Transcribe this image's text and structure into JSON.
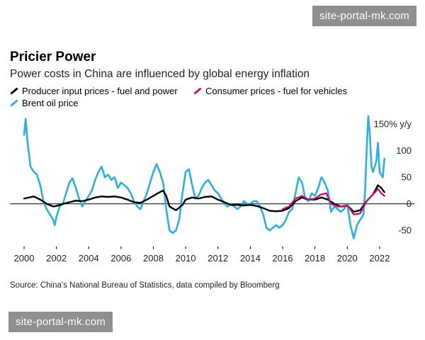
{
  "watermark_top": "site-portal-mk.com",
  "watermark_bottom": "site-portal-mk.com",
  "chart_data": {
    "type": "line",
    "title": "Pricier Power",
    "subtitle": "Power costs in China are influenced by global energy inflation",
    "ylabel_unit": "150% y/y",
    "ylim": [
      -75,
      165
    ],
    "xlim": [
      2000,
      2022.4
    ],
    "y_ticks": [
      -50,
      0,
      50,
      100,
      150
    ],
    "y_tick_labels": [
      "-50",
      "0",
      "50",
      "100",
      "150% y/y"
    ],
    "x_ticks": [
      2000,
      2002,
      2004,
      2006,
      2008,
      2010,
      2012,
      2014,
      2016,
      2018,
      2020,
      2022
    ],
    "x_tick_labels": [
      "2000",
      "2002",
      "2004",
      "2006",
      "2008",
      "2010",
      "2012",
      "2014",
      "2016",
      "2018",
      "2020",
      "2022"
    ],
    "zero_line": true,
    "source": "Source: China's National Bureau of Statistics, data compiled by Bloomberg",
    "series": [
      {
        "name": "Brent oil price",
        "color": "#2ab0dc",
        "points": [
          [
            2000,
            130
          ],
          [
            2000.1,
            160
          ],
          [
            2000.2,
            120
          ],
          [
            2000.4,
            70
          ],
          [
            2000.6,
            60
          ],
          [
            2000.8,
            55
          ],
          [
            2001.0,
            35
          ],
          [
            2001.2,
            5
          ],
          [
            2001.4,
            -10
          ],
          [
            2001.6,
            -20
          ],
          [
            2001.8,
            -30
          ],
          [
            2001.9,
            -40
          ],
          [
            2002.0,
            -25
          ],
          [
            2002.2,
            -5
          ],
          [
            2002.4,
            0
          ],
          [
            2002.6,
            20
          ],
          [
            2002.8,
            40
          ],
          [
            2003.0,
            48
          ],
          [
            2003.2,
            30
          ],
          [
            2003.4,
            10
          ],
          [
            2003.6,
            -5
          ],
          [
            2003.8,
            5
          ],
          [
            2004.0,
            15
          ],
          [
            2004.2,
            25
          ],
          [
            2004.4,
            45
          ],
          [
            2004.6,
            60
          ],
          [
            2004.8,
            70
          ],
          [
            2005.0,
            50
          ],
          [
            2005.2,
            55
          ],
          [
            2005.4,
            45
          ],
          [
            2005.6,
            50
          ],
          [
            2005.8,
            30
          ],
          [
            2006.0,
            40
          ],
          [
            2006.2,
            35
          ],
          [
            2006.4,
            30
          ],
          [
            2006.6,
            20
          ],
          [
            2006.8,
            5
          ],
          [
            2007.0,
            -5
          ],
          [
            2007.2,
            -10
          ],
          [
            2007.4,
            5
          ],
          [
            2007.6,
            20
          ],
          [
            2007.8,
            40
          ],
          [
            2008.0,
            60
          ],
          [
            2008.2,
            75
          ],
          [
            2008.4,
            60
          ],
          [
            2008.6,
            40
          ],
          [
            2008.8,
            -10
          ],
          [
            2009.0,
            -50
          ],
          [
            2009.2,
            -55
          ],
          [
            2009.4,
            -50
          ],
          [
            2009.6,
            -30
          ],
          [
            2009.8,
            20
          ],
          [
            2010.0,
            60
          ],
          [
            2010.2,
            65
          ],
          [
            2010.4,
            35
          ],
          [
            2010.6,
            10
          ],
          [
            2010.8,
            15
          ],
          [
            2011.0,
            30
          ],
          [
            2011.2,
            40
          ],
          [
            2011.4,
            45
          ],
          [
            2011.6,
            35
          ],
          [
            2011.8,
            25
          ],
          [
            2012.0,
            20
          ],
          [
            2012.2,
            10
          ],
          [
            2012.4,
            0
          ],
          [
            2012.6,
            -5
          ],
          [
            2012.8,
            0
          ],
          [
            2013.0,
            -5
          ],
          [
            2013.2,
            -10
          ],
          [
            2013.4,
            -5
          ],
          [
            2013.6,
            5
          ],
          [
            2013.8,
            0
          ],
          [
            2014.0,
            0
          ],
          [
            2014.2,
            5
          ],
          [
            2014.4,
            5
          ],
          [
            2014.6,
            -5
          ],
          [
            2014.8,
            -20
          ],
          [
            2015.0,
            -45
          ],
          [
            2015.2,
            -50
          ],
          [
            2015.4,
            -45
          ],
          [
            2015.6,
            -40
          ],
          [
            2015.8,
            -45
          ],
          [
            2016.0,
            -40
          ],
          [
            2016.2,
            -30
          ],
          [
            2016.4,
            -15
          ],
          [
            2016.6,
            -10
          ],
          [
            2016.8,
            20
          ],
          [
            2017.0,
            50
          ],
          [
            2017.2,
            40
          ],
          [
            2017.4,
            10
          ],
          [
            2017.6,
            5
          ],
          [
            2017.8,
            20
          ],
          [
            2018.0,
            15
          ],
          [
            2018.2,
            30
          ],
          [
            2018.4,
            50
          ],
          [
            2018.6,
            40
          ],
          [
            2018.8,
            25
          ],
          [
            2019.0,
            -15
          ],
          [
            2019.2,
            -5
          ],
          [
            2019.4,
            -10
          ],
          [
            2019.6,
            -15
          ],
          [
            2019.8,
            -10
          ],
          [
            2020.0,
            0
          ],
          [
            2020.2,
            -40
          ],
          [
            2020.4,
            -65
          ],
          [
            2020.6,
            -40
          ],
          [
            2020.8,
            -30
          ],
          [
            2021.0,
            -20
          ],
          [
            2021.1,
            20
          ],
          [
            2021.2,
            100
          ],
          [
            2021.3,
            165
          ],
          [
            2021.4,
            130
          ],
          [
            2021.5,
            70
          ],
          [
            2021.6,
            60
          ],
          [
            2021.8,
            80
          ],
          [
            2021.9,
            115
          ],
          [
            2022.0,
            60
          ],
          [
            2022.2,
            50
          ],
          [
            2022.3,
            85
          ]
        ]
      },
      {
        "name": "Producer input prices - fuel and power",
        "color": "#000000",
        "points": [
          [
            2000,
            10
          ],
          [
            2000.3,
            12
          ],
          [
            2000.6,
            14
          ],
          [
            2001.0,
            8
          ],
          [
            2001.4,
            0
          ],
          [
            2001.8,
            -5
          ],
          [
            2002.0,
            -4
          ],
          [
            2002.4,
            0
          ],
          [
            2002.8,
            3
          ],
          [
            2003.2,
            6
          ],
          [
            2003.6,
            5
          ],
          [
            2004.0,
            8
          ],
          [
            2004.4,
            12
          ],
          [
            2004.8,
            14
          ],
          [
            2005.2,
            13
          ],
          [
            2005.6,
            14
          ],
          [
            2006.0,
            12
          ],
          [
            2006.4,
            8
          ],
          [
            2006.8,
            3
          ],
          [
            2007.2,
            2
          ],
          [
            2007.6,
            8
          ],
          [
            2008.0,
            15
          ],
          [
            2008.4,
            22
          ],
          [
            2008.6,
            25
          ],
          [
            2008.8,
            15
          ],
          [
            2009.0,
            -5
          ],
          [
            2009.4,
            -12
          ],
          [
            2009.8,
            -2
          ],
          [
            2010.0,
            8
          ],
          [
            2010.4,
            12
          ],
          [
            2010.8,
            10
          ],
          [
            2011.2,
            13
          ],
          [
            2011.6,
            14
          ],
          [
            2012.0,
            8
          ],
          [
            2012.4,
            3
          ],
          [
            2012.8,
            -2
          ],
          [
            2013.2,
            -2
          ],
          [
            2013.6,
            -3
          ],
          [
            2014.0,
            -2
          ],
          [
            2014.4,
            -4
          ],
          [
            2014.8,
            -8
          ],
          [
            2015.2,
            -13
          ],
          [
            2015.6,
            -14
          ],
          [
            2016.0,
            -13
          ],
          [
            2016.4,
            -8
          ],
          [
            2016.8,
            5
          ],
          [
            2017.2,
            12
          ],
          [
            2017.6,
            8
          ],
          [
            2018.0,
            8
          ],
          [
            2018.4,
            12
          ],
          [
            2018.8,
            8
          ],
          [
            2019.2,
            0
          ],
          [
            2019.6,
            -5
          ],
          [
            2020.0,
            -3
          ],
          [
            2020.4,
            -15
          ],
          [
            2020.8,
            -12
          ],
          [
            2021.2,
            5
          ],
          [
            2021.6,
            18
          ],
          [
            2021.9,
            35
          ],
          [
            2022.1,
            30
          ],
          [
            2022.3,
            22
          ]
        ]
      },
      {
        "name": "Consumer prices - fuel for vehicles",
        "color": "#c0176c",
        "points": [
          [
            2016.0,
            -10
          ],
          [
            2016.4,
            -5
          ],
          [
            2016.8,
            10
          ],
          [
            2017.2,
            15
          ],
          [
            2017.6,
            8
          ],
          [
            2018.0,
            10
          ],
          [
            2018.4,
            18
          ],
          [
            2018.7,
            20
          ],
          [
            2019.0,
            0
          ],
          [
            2019.4,
            -5
          ],
          [
            2019.8,
            -5
          ],
          [
            2020.0,
            -2
          ],
          [
            2020.4,
            -20
          ],
          [
            2020.8,
            -18
          ],
          [
            2021.2,
            5
          ],
          [
            2021.6,
            18
          ],
          [
            2021.9,
            28
          ],
          [
            2022.1,
            20
          ],
          [
            2022.3,
            15
          ]
        ]
      }
    ]
  }
}
